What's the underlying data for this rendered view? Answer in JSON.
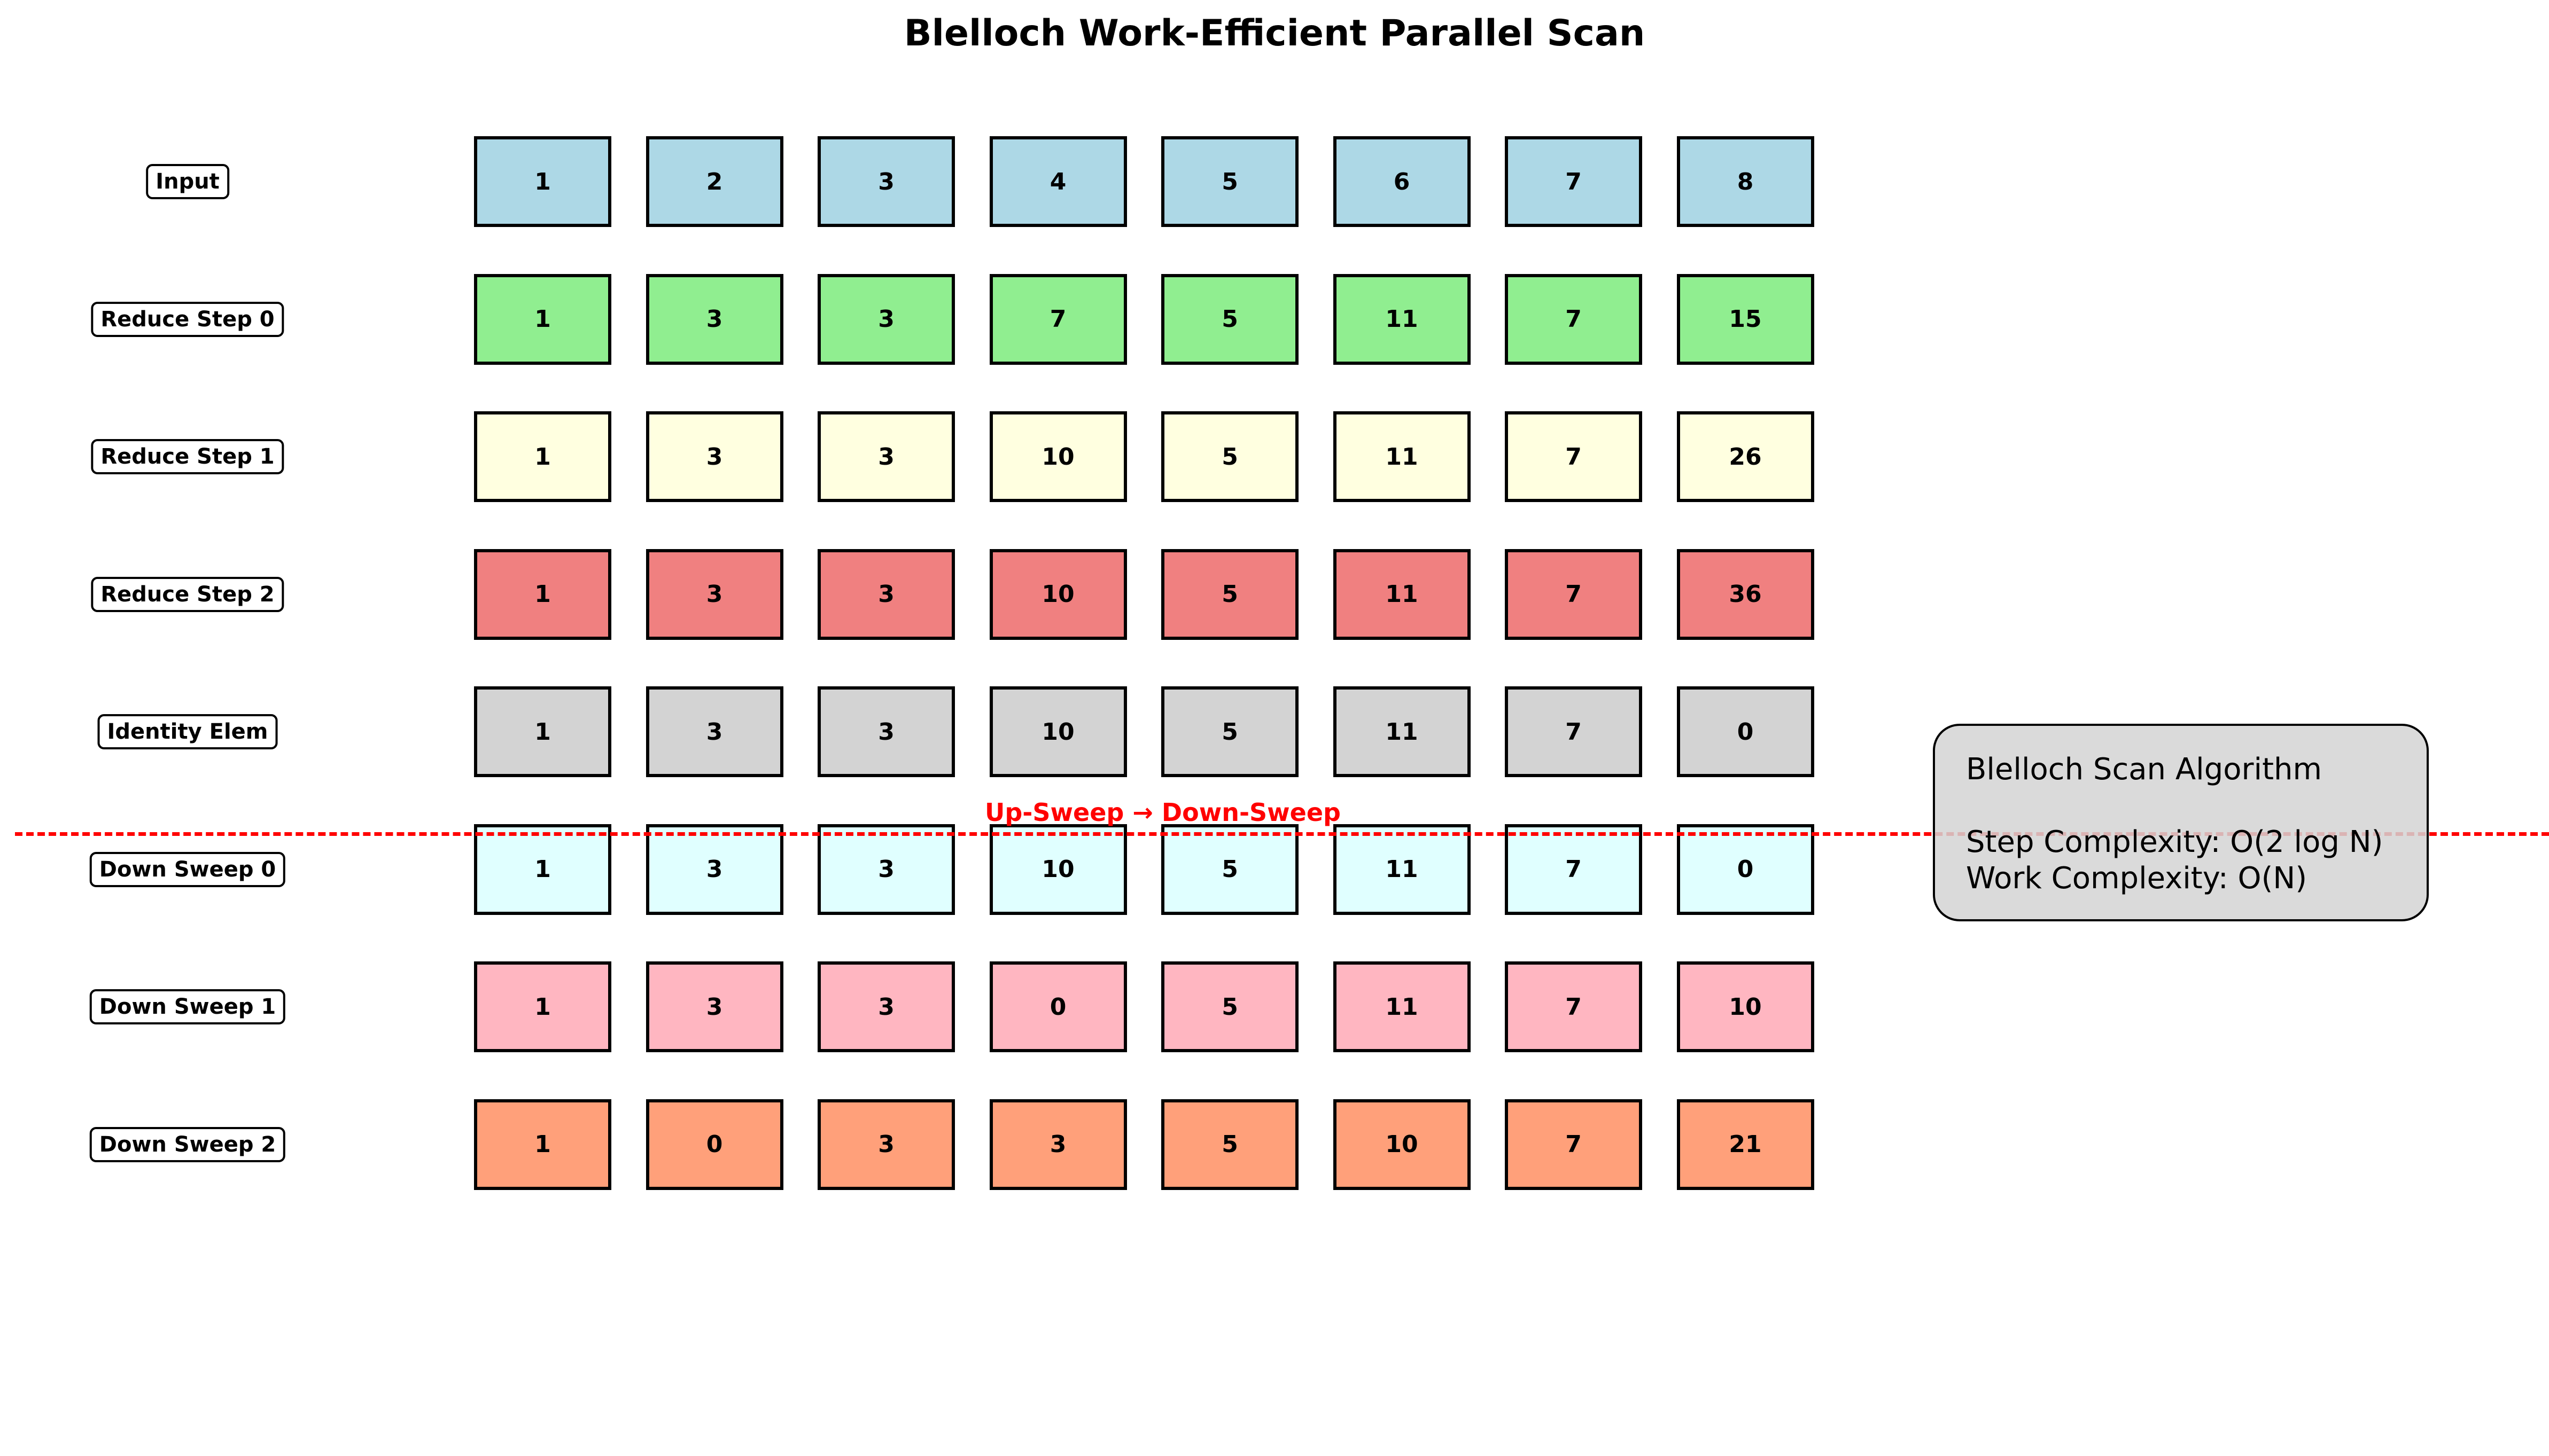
{
  "title": "Blelloch Work-Efficient Parallel Scan",
  "rows": [
    {
      "label": "Input",
      "color": "#add8e6",
      "values": [
        "1",
        "2",
        "3",
        "4",
        "5",
        "6",
        "7",
        "8"
      ]
    },
    {
      "label": "Reduce Step 0",
      "color": "#90ee90",
      "values": [
        "1",
        "3",
        "3",
        "7",
        "5",
        "11",
        "7",
        "15"
      ]
    },
    {
      "label": "Reduce Step 1",
      "color": "#ffffe0",
      "values": [
        "1",
        "3",
        "3",
        "10",
        "5",
        "11",
        "7",
        "26"
      ]
    },
    {
      "label": "Reduce Step 2",
      "color": "#f08080",
      "values": [
        "1",
        "3",
        "3",
        "10",
        "5",
        "11",
        "7",
        "36"
      ]
    },
    {
      "label": "Identity Elem",
      "color": "#d3d3d3",
      "values": [
        "1",
        "3",
        "3",
        "10",
        "5",
        "11",
        "7",
        "0"
      ]
    },
    {
      "label": "Down Sweep 0",
      "color": "#e0ffff",
      "values": [
        "1",
        "3",
        "3",
        "10",
        "5",
        "11",
        "7",
        "0"
      ]
    },
    {
      "label": "Down Sweep 1",
      "color": "#ffb6c1",
      "values": [
        "1",
        "3",
        "3",
        "0",
        "5",
        "11",
        "7",
        "10"
      ]
    },
    {
      "label": "Down Sweep 2",
      "color": "#ffa07a",
      "values": [
        "1",
        "0",
        "3",
        "3",
        "5",
        "10",
        "7",
        "21"
      ]
    }
  ],
  "divider": {
    "label": "Up-Sweep → Down-Sweep",
    "color": "#ff0000"
  },
  "info_box": {
    "title": "Blelloch Scan Algorithm",
    "step_complexity": "Step Complexity: O(2 log N)",
    "work_complexity": "Work Complexity: O(N)"
  }
}
